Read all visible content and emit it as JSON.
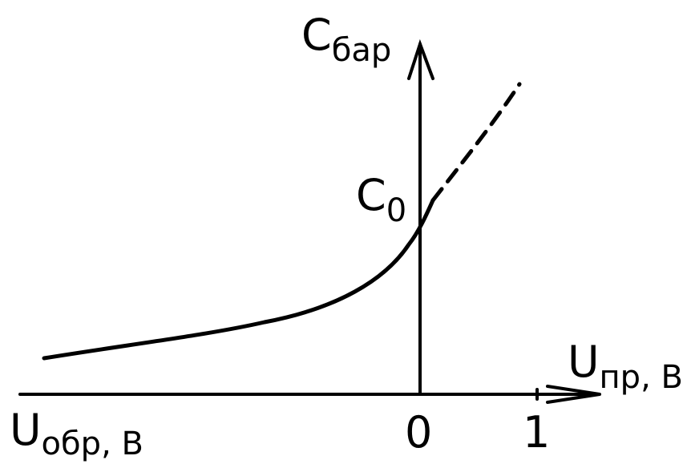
{
  "y_axis_label": {
    "main": "C",
    "sub": "бар"
  },
  "x_axis_positive_label": {
    "main": "U",
    "sub": "пр, В"
  },
  "x_axis_negative_label": {
    "main": "U",
    "sub": "обр, В"
  },
  "curve_label": {
    "main": "C",
    "sub": "0"
  },
  "ticks": [
    "0",
    "1"
  ]
}
